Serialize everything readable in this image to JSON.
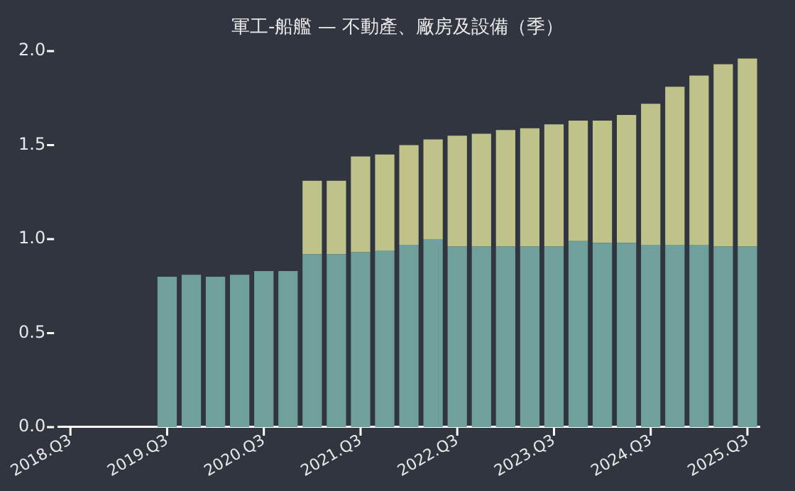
{
  "chart_data": {
    "type": "bar",
    "title": "軍工-船艦 — 不動產、廠房及設備（季）",
    "stacked": true,
    "grid": false,
    "legend": false,
    "categories": [
      "2018.Q3",
      null,
      null,
      null,
      "2019.Q3",
      null,
      null,
      null,
      "2020.Q3",
      null,
      null,
      null,
      "2021.Q3",
      null,
      null,
      null,
      "2022.Q3",
      null,
      null,
      null,
      "2023.Q3",
      null,
      null,
      null,
      "2024.Q3",
      null,
      null,
      null,
      "2025.Q3"
    ],
    "series": [
      {
        "color": "#6fa09c",
        "values": [
          null,
          null,
          null,
          null,
          0.8,
          0.81,
          0.8,
          0.81,
          0.83,
          0.83,
          0.92,
          0.92,
          0.93,
          0.94,
          0.97,
          1.0,
          0.96,
          0.96,
          0.96,
          0.96,
          0.96,
          0.99,
          0.98,
          0.98,
          0.97,
          0.97,
          0.97,
          0.96,
          0.96
        ]
      },
      {
        "color": "#bfc38a",
        "values": [
          null,
          null,
          null,
          null,
          null,
          null,
          null,
          null,
          null,
          null,
          0.39,
          0.39,
          0.51,
          0.51,
          0.53,
          0.53,
          0.59,
          0.6,
          0.62,
          0.63,
          0.65,
          0.64,
          0.65,
          0.68,
          0.75,
          0.84,
          0.9,
          0.97,
          1.0
        ]
      }
    ],
    "ylim": [
      0,
      2.0
    ],
    "yticks": [
      {
        "value": 0,
        "label": "0.0"
      },
      {
        "value": 0.5,
        "label": "0.5"
      },
      {
        "value": 1.0,
        "label": "1.0"
      },
      {
        "value": 1.5,
        "label": "1.5"
      },
      {
        "value": 2.0,
        "label": "2.0"
      }
    ]
  }
}
